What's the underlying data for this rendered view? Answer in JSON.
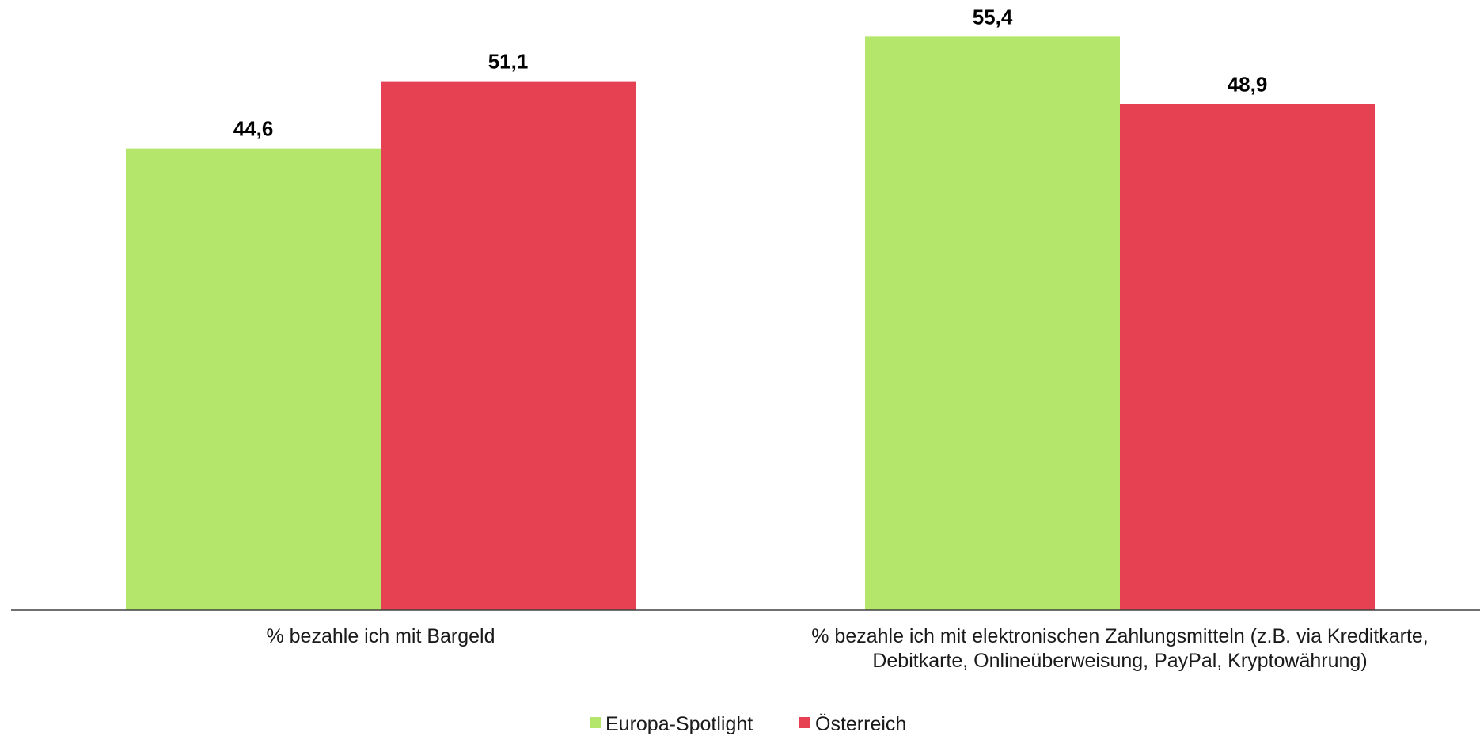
{
  "chart_data": {
    "type": "bar",
    "categories": [
      [
        "% bezahle ich mit Bargeld"
      ],
      [
        "% bezahle ich mit elektronischen Zahlungsmitteln (z.B. via Kreditkarte,",
        "Debitkarte, Onlineüberweisung, PayPal, Kryptowährung)"
      ]
    ],
    "series": [
      {
        "name": "Europa-Spotlight",
        "color": "#b3e66a",
        "values": [
          44.6,
          55.4
        ],
        "labels": [
          "44,6",
          "55,4"
        ]
      },
      {
        "name": "Österreich",
        "color": "#e54152",
        "values": [
          51.1,
          48.9
        ],
        "labels": [
          "51,1",
          "48,9"
        ]
      }
    ],
    "ylim": [
      0,
      60
    ],
    "grid": false,
    "legend_position": "bottom-center"
  }
}
